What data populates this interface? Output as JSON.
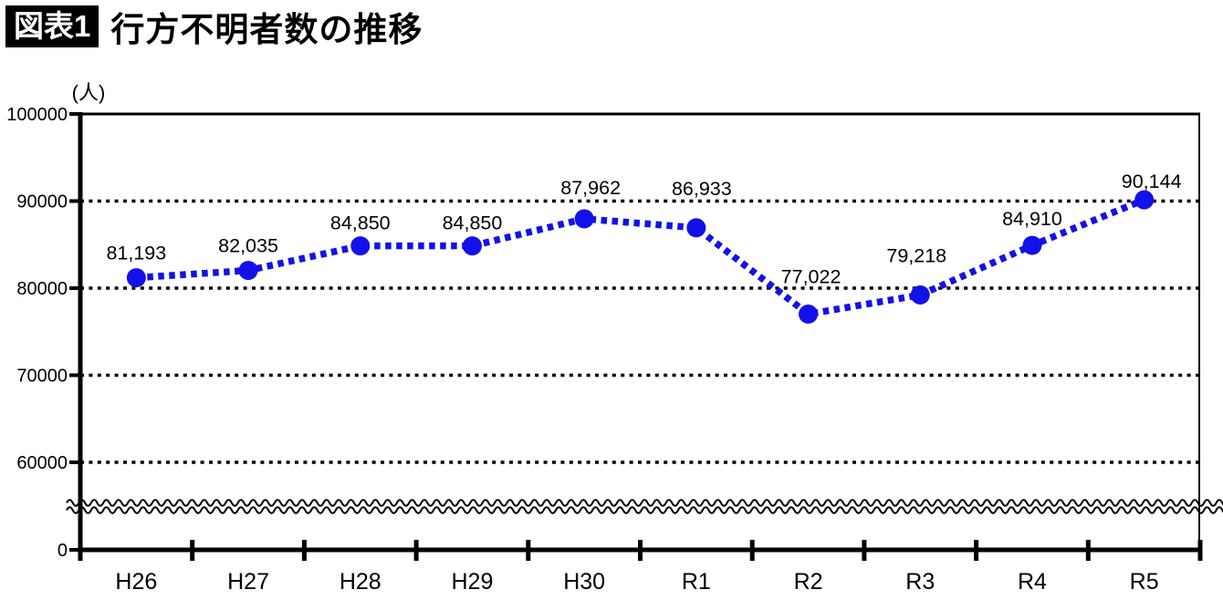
{
  "header": {
    "badge": "図表1",
    "title": "行方不明者数の推移"
  },
  "chart_data": {
    "type": "line",
    "title": "行方不明者数の推移",
    "unit_label": "(人)",
    "categories": [
      "H26",
      "H27",
      "H28",
      "H29",
      "H30",
      "R1",
      "R2",
      "R3",
      "R4",
      "R5"
    ],
    "series": [
      {
        "name": "行方不明者数",
        "values": [
          81193,
          82035,
          84850,
          84850,
          87962,
          86933,
          77022,
          79218,
          84910,
          90144
        ]
      }
    ],
    "data_labels": [
      "81,193",
      "82,035",
      "84,850",
      "84,850",
      "87,962",
      "86,933",
      "77,022",
      "79,218",
      "84,910",
      "90,144"
    ],
    "y_tick_labels": [
      "100000",
      "90000",
      "80000",
      "70000",
      "60000",
      "0"
    ],
    "y_tick_values": [
      100000,
      90000,
      80000,
      70000,
      60000,
      0
    ],
    "ylim": [
      0,
      100000
    ],
    "axis_break_between": [
      0,
      60000
    ],
    "grid": "dotted horizontal gridlines at 60000, 70000, 80000, 90000; solid top border at 100000",
    "legend": "none",
    "line_color": "#1212e8",
    "line_style": "dotted",
    "marker": "filled-circle",
    "axis_color": "#000000",
    "text_color": "#000000"
  }
}
